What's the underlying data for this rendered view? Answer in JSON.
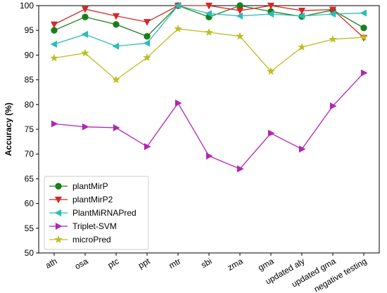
{
  "chart_data": {
    "type": "line",
    "title": "",
    "xlabel": "",
    "ylabel": "Accuracy (%)",
    "ylim": [
      50,
      100
    ],
    "yticks": [
      50,
      55,
      60,
      65,
      70,
      75,
      80,
      85,
      90,
      95,
      100
    ],
    "grid": false,
    "legend_position": "bottom-left",
    "categories": [
      "ath",
      "osa",
      "ptc",
      "ppt",
      "mtr",
      "sbi",
      "zma",
      "gma",
      "updated aly",
      "updated gma",
      "negative testing"
    ],
    "series": [
      {
        "name": "plantMirP",
        "color": "#1a7f1a",
        "marker": "circle",
        "values": [
          95.0,
          97.7,
          96.2,
          93.8,
          100.0,
          97.7,
          100.0,
          98.8,
          97.8,
          99.1,
          95.5
        ]
      },
      {
        "name": "plantMirP2",
        "color": "#d62728",
        "marker": "triangle-down",
        "values": [
          96.2,
          99.3,
          97.9,
          96.7,
          100.0,
          100.0,
          99.0,
          100.0,
          99.0,
          99.2,
          93.5
        ]
      },
      {
        "name": "PlantMiRNAPred",
        "color": "#2bbcbc",
        "marker": "triangle-left",
        "values": [
          92.2,
          94.2,
          91.8,
          92.4,
          100.0,
          98.4,
          97.9,
          98.3,
          97.9,
          98.3,
          98.5
        ]
      },
      {
        "name": "Triplet-SVM",
        "color": "#b424b4",
        "marker": "triangle-right",
        "values": [
          76.1,
          75.5,
          75.3,
          71.5,
          80.3,
          69.6,
          67.0,
          74.2,
          71.0,
          79.7,
          86.4
        ]
      },
      {
        "name": "microPred",
        "color": "#bcbd22",
        "marker": "star",
        "values": [
          89.4,
          90.4,
          85.0,
          89.5,
          95.3,
          94.6,
          93.8,
          86.7,
          91.6,
          93.2,
          93.6
        ]
      }
    ]
  }
}
